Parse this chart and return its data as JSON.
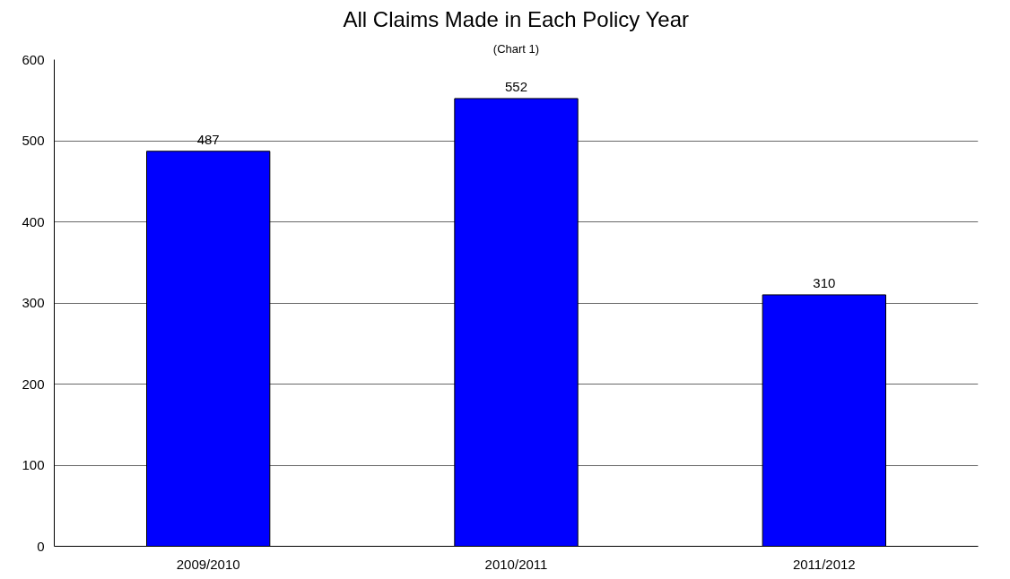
{
  "chart_data": {
    "type": "bar",
    "title": "All Claims Made in Each Policy Year",
    "subtitle": "(Chart 1)",
    "categories": [
      "2009/2010",
      "2010/2011",
      "2011/2012"
    ],
    "values": [
      487,
      552,
      310
    ],
    "color": "#0000ff",
    "ylim": [
      0,
      600
    ],
    "yticks": [
      0,
      100,
      200,
      300,
      400,
      500,
      600
    ],
    "grid": "y",
    "data_labels": true
  }
}
